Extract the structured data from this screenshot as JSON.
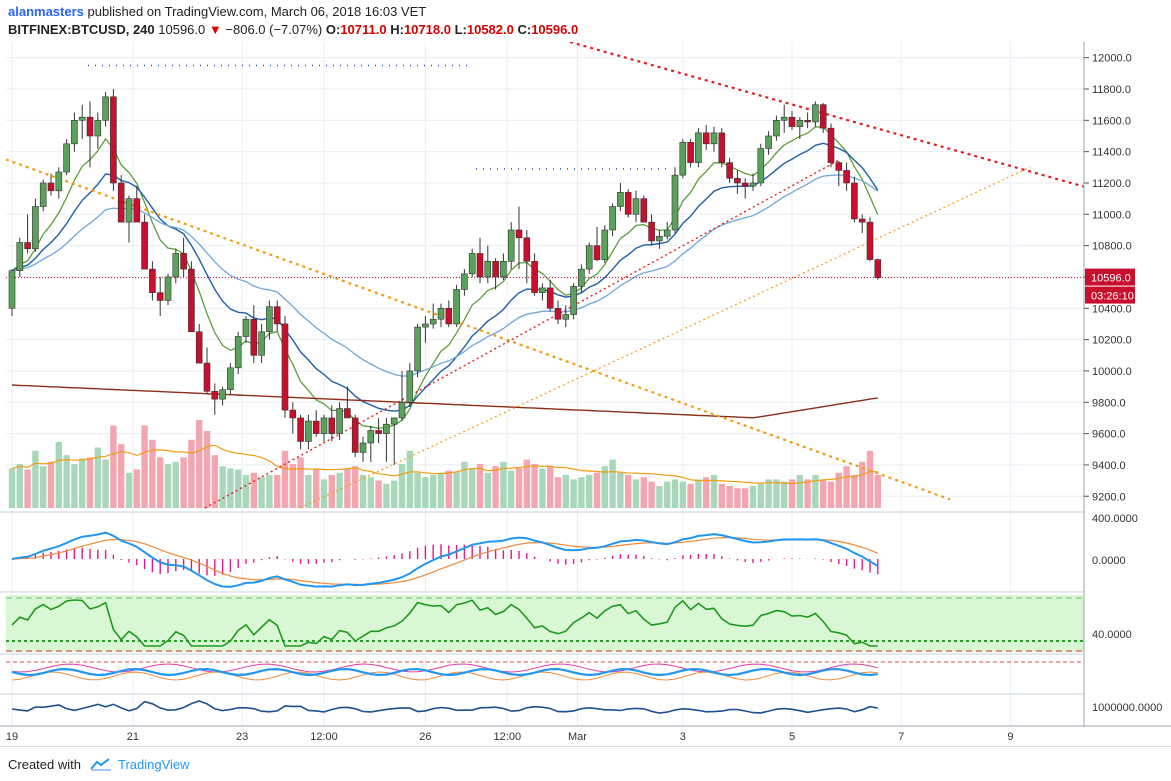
{
  "header": {
    "author": "alanmasters",
    "published_text": "published on TradingView.com, March 06, 2018 16:03 VET",
    "symbol": "BITFINEX:BTCUSD, 240",
    "last": "10596.0",
    "change": "−806.0 (−7.07%)",
    "o_label": "O:",
    "o_value": "10711.0",
    "h_label": "H:",
    "h_value": "10718.0",
    "l_label": "L:",
    "l_value": "10582.0",
    "c_label": "C:",
    "c_value": "10596.0"
  },
  "footer": {
    "created_with": "Created with",
    "brand": "TradingView"
  },
  "colors": {
    "up": "#5aa15a",
    "down": "#c8102e",
    "vol_up": "#a8d8b9",
    "vol_down": "#f4a6b0",
    "ema_green": "#5a9e3a",
    "ema_blue": "#1f5fa8",
    "ema_lightblue": "#6fa6d8",
    "ma_brown": "#8b2f1a",
    "vol_ma": "#f39c12",
    "trend_orange": "#f39c12",
    "trend_red": "#e02020"
  },
  "chart_data": {
    "type": "candlestick",
    "price_axis": {
      "ticks": [
        "12000.0",
        "11800.0",
        "11600.0",
        "11400.0",
        "11200.0",
        "11000.0",
        "10800.0",
        "10600.0",
        "10400.0",
        "10200.0",
        "10000.0",
        "9800.0",
        "9600.0",
        "9400.0",
        "9200.0"
      ],
      "ylim": [
        9125,
        12100
      ],
      "last_price_label": "10596.0",
      "countdown_label": "03:26:10"
    },
    "time_axis": {
      "labels": [
        "19",
        "21",
        "23",
        "12:00",
        "26",
        "12:00",
        "Mar",
        "3",
        "5",
        "7",
        "9"
      ]
    },
    "candles": [
      [
        10400,
        10650,
        10350,
        10640
      ],
      [
        10640,
        10850,
        10600,
        10820
      ],
      [
        10820,
        11000,
        10750,
        10780
      ],
      [
        10780,
        11100,
        10760,
        11050
      ],
      [
        11050,
        11220,
        11020,
        11200
      ],
      [
        11200,
        11260,
        11120,
        11150
      ],
      [
        11150,
        11300,
        11100,
        11270
      ],
      [
        11270,
        11480,
        11250,
        11450
      ],
      [
        11450,
        11650,
        11400,
        11600
      ],
      [
        11600,
        11700,
        11480,
        11620
      ],
      [
        11620,
        11720,
        11300,
        11500
      ],
      [
        11500,
        11650,
        11420,
        11600
      ],
      [
        11600,
        11780,
        11560,
        11750
      ],
      [
        11750,
        11800,
        11150,
        11200
      ],
      [
        11200,
        11250,
        10950,
        10950
      ],
      [
        10950,
        11120,
        10820,
        11100
      ],
      [
        11100,
        11180,
        10950,
        10950
      ],
      [
        10950,
        11000,
        10650,
        10650
      ],
      [
        10650,
        10700,
        10450,
        10500
      ],
      [
        10500,
        10600,
        10350,
        10450
      ],
      [
        10450,
        10620,
        10420,
        10600
      ],
      [
        10600,
        10780,
        10560,
        10750
      ],
      [
        10750,
        10850,
        10600,
        10650
      ],
      [
        10650,
        10700,
        10250,
        10250
      ],
      [
        10250,
        10300,
        10050,
        10050
      ],
      [
        10050,
        10150,
        9850,
        9870
      ],
      [
        9870,
        9920,
        9720,
        9820
      ],
      [
        9820,
        9900,
        9780,
        9880
      ],
      [
        9880,
        10050,
        9850,
        10020
      ],
      [
        10020,
        10250,
        9980,
        10220
      ],
      [
        10220,
        10350,
        10180,
        10330
      ],
      [
        10330,
        10420,
        10050,
        10100
      ],
      [
        10100,
        10300,
        10050,
        10250
      ],
      [
        10250,
        10450,
        10200,
        10410
      ],
      [
        10410,
        10450,
        10250,
        10300
      ],
      [
        10300,
        10350,
        9700,
        9750
      ],
      [
        9750,
        9800,
        9600,
        9700
      ],
      [
        9700,
        9720,
        9500,
        9550
      ],
      [
        9550,
        9720,
        9500,
        9680
      ],
      [
        9680,
        9750,
        9580,
        9600
      ],
      [
        9600,
        9720,
        9550,
        9700
      ],
      [
        9700,
        9780,
        9550,
        9600
      ],
      [
        9600,
        9800,
        9560,
        9760
      ],
      [
        9760,
        9900,
        9700,
        9700
      ],
      [
        9700,
        9720,
        9450,
        9480
      ],
      [
        9480,
        9580,
        9420,
        9540
      ],
      [
        9540,
        9650,
        9420,
        9620
      ],
      [
        9620,
        9700,
        9540,
        9600
      ],
      [
        9600,
        9700,
        9420,
        9660
      ],
      [
        9660,
        9700,
        9400,
        9700
      ],
      [
        9700,
        10000,
        9680,
        9800
      ],
      [
        9800,
        10050,
        9770,
        10000
      ],
      [
        10000,
        10300,
        9960,
        10280
      ],
      [
        10280,
        10350,
        10180,
        10300
      ],
      [
        10300,
        10430,
        10270,
        10330
      ],
      [
        10330,
        10430,
        10280,
        10400
      ],
      [
        10400,
        10450,
        10280,
        10300
      ],
      [
        10300,
        10550,
        10280,
        10520
      ],
      [
        10520,
        10650,
        10480,
        10620
      ],
      [
        10620,
        10780,
        10600,
        10750
      ],
      [
        10750,
        10850,
        10560,
        10600
      ],
      [
        10600,
        10800,
        10560,
        10700
      ],
      [
        10700,
        10720,
        10520,
        10600
      ],
      [
        10600,
        10750,
        10580,
        10700
      ],
      [
        10700,
        10950,
        10650,
        10900
      ],
      [
        10900,
        11050,
        10650,
        10850
      ],
      [
        10850,
        10900,
        10560,
        10700
      ],
      [
        10700,
        10750,
        10480,
        10500
      ],
      [
        10500,
        10560,
        10450,
        10530
      ],
      [
        10530,
        10580,
        10380,
        10400
      ],
      [
        10400,
        10450,
        10300,
        10330
      ],
      [
        10330,
        10420,
        10280,
        10360
      ],
      [
        10360,
        10560,
        10330,
        10540
      ],
      [
        10540,
        10680,
        10500,
        10650
      ],
      [
        10650,
        10820,
        10620,
        10800
      ],
      [
        10800,
        10920,
        10700,
        10710
      ],
      [
        10710,
        10930,
        10690,
        10900
      ],
      [
        10900,
        11070,
        10860,
        11050
      ],
      [
        11050,
        11200,
        11020,
        11140
      ],
      [
        11140,
        11160,
        10980,
        11000
      ],
      [
        11000,
        11150,
        10950,
        11100
      ],
      [
        11100,
        11120,
        10950,
        10950
      ],
      [
        10950,
        11000,
        10800,
        10830
      ],
      [
        10830,
        10900,
        10780,
        10860
      ],
      [
        10860,
        10950,
        10840,
        10900
      ],
      [
        10900,
        11300,
        10880,
        11250
      ],
      [
        11250,
        11480,
        11230,
        11460
      ],
      [
        11460,
        11480,
        11300,
        11330
      ],
      [
        11330,
        11550,
        11300,
        11520
      ],
      [
        11520,
        11570,
        11410,
        11450
      ],
      [
        11450,
        11560,
        11400,
        11520
      ],
      [
        11520,
        11550,
        11300,
        11330
      ],
      [
        11330,
        11360,
        11200,
        11230
      ],
      [
        11230,
        11280,
        11130,
        11200
      ],
      [
        11200,
        11230,
        11100,
        11180
      ],
      [
        11180,
        11260,
        11150,
        11200
      ],
      [
        11200,
        11450,
        11180,
        11420
      ],
      [
        11420,
        11530,
        11380,
        11500
      ],
      [
        11500,
        11630,
        11470,
        11600
      ],
      [
        11600,
        11700,
        11520,
        11620
      ],
      [
        11620,
        11660,
        11540,
        11560
      ],
      [
        11560,
        11620,
        11480,
        11600
      ],
      [
        11600,
        11650,
        11550,
        11590
      ],
      [
        11590,
        11720,
        11560,
        11700
      ],
      [
        11700,
        11710,
        11520,
        11550
      ],
      [
        11550,
        11580,
        11300,
        11330
      ],
      [
        11330,
        11340,
        11180,
        11280
      ],
      [
        11280,
        11330,
        11150,
        11200
      ],
      [
        11200,
        11240,
        10950,
        10970
      ],
      [
        10970,
        11000,
        10880,
        10950
      ],
      [
        10950,
        10980,
        10700,
        10711
      ],
      [
        10711,
        10718,
        10582,
        10596
      ]
    ],
    "volume": [
      0.36,
      0.4,
      0.35,
      0.52,
      0.38,
      0.42,
      0.6,
      0.48,
      0.4,
      0.45,
      0.46,
      0.55,
      0.44,
      0.75,
      0.58,
      0.32,
      0.35,
      0.75,
      0.62,
      0.46,
      0.4,
      0.42,
      0.46,
      0.62,
      0.8,
      0.7,
      0.48,
      0.38,
      0.36,
      0.35,
      0.3,
      0.32,
      0.28,
      0.3,
      0.3,
      0.52,
      0.4,
      0.46,
      0.3,
      0.36,
      0.26,
      0.3,
      0.32,
      0.36,
      0.38,
      0.3,
      0.28,
      0.25,
      0.22,
      0.25,
      0.4,
      0.52,
      0.32,
      0.28,
      0.3,
      0.32,
      0.34,
      0.33,
      0.42,
      0.36,
      0.4,
      0.32,
      0.38,
      0.42,
      0.34,
      0.36,
      0.44,
      0.4,
      0.36,
      0.38,
      0.28,
      0.3,
      0.26,
      0.28,
      0.3,
      0.32,
      0.38,
      0.44,
      0.32,
      0.3,
      0.26,
      0.28,
      0.24,
      0.2,
      0.24,
      0.26,
      0.24,
      0.22,
      0.26,
      0.28,
      0.3,
      0.22,
      0.2,
      0.18,
      0.18,
      0.2,
      0.22,
      0.26,
      0.26,
      0.24,
      0.26,
      0.3,
      0.26,
      0.3,
      0.26,
      0.24,
      0.32,
      0.38,
      0.3,
      0.42,
      0.52,
      0.3
    ],
    "osc_axis_label": "400.0000",
    "osc_zero_label": "0.0000",
    "rsi_axis_label": "40.0000",
    "vol_osc_axis_label": "1000000.0000"
  }
}
